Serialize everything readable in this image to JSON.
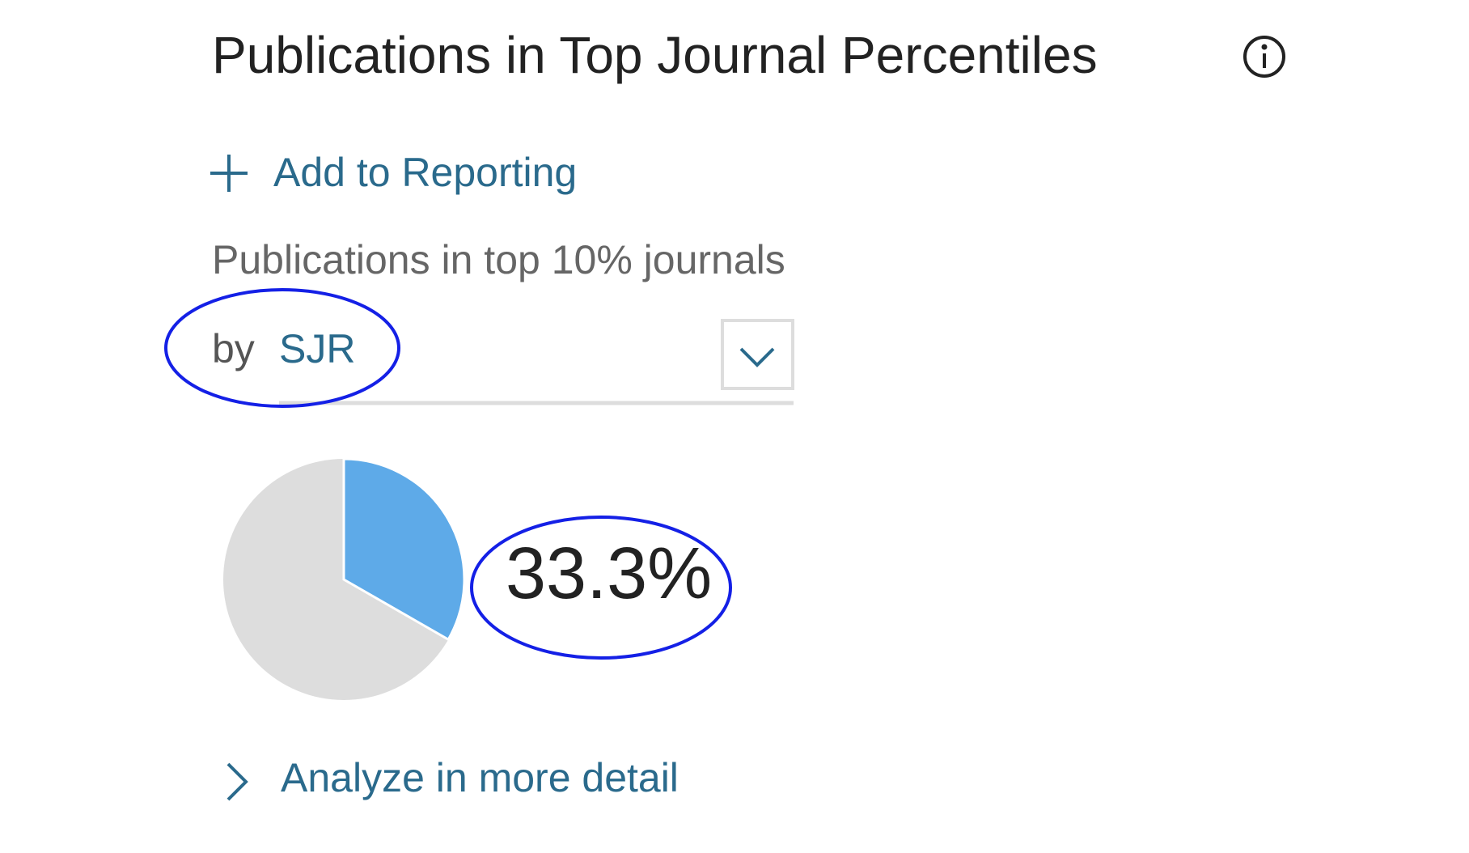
{
  "header": {
    "title": "Publications in Top Journal Percentiles"
  },
  "actions": {
    "add_to_reporting": "Add to Reporting",
    "analyze": "Analyze in more detail"
  },
  "metric": {
    "label": "Publications in top 10% journals"
  },
  "selector": {
    "prefix": "by",
    "value": "SJR"
  },
  "chart_data": {
    "type": "pie",
    "values": [
      33.3
    ],
    "value_labels": [
      "33.3%"
    ],
    "color": "#5eaae8"
  }
}
